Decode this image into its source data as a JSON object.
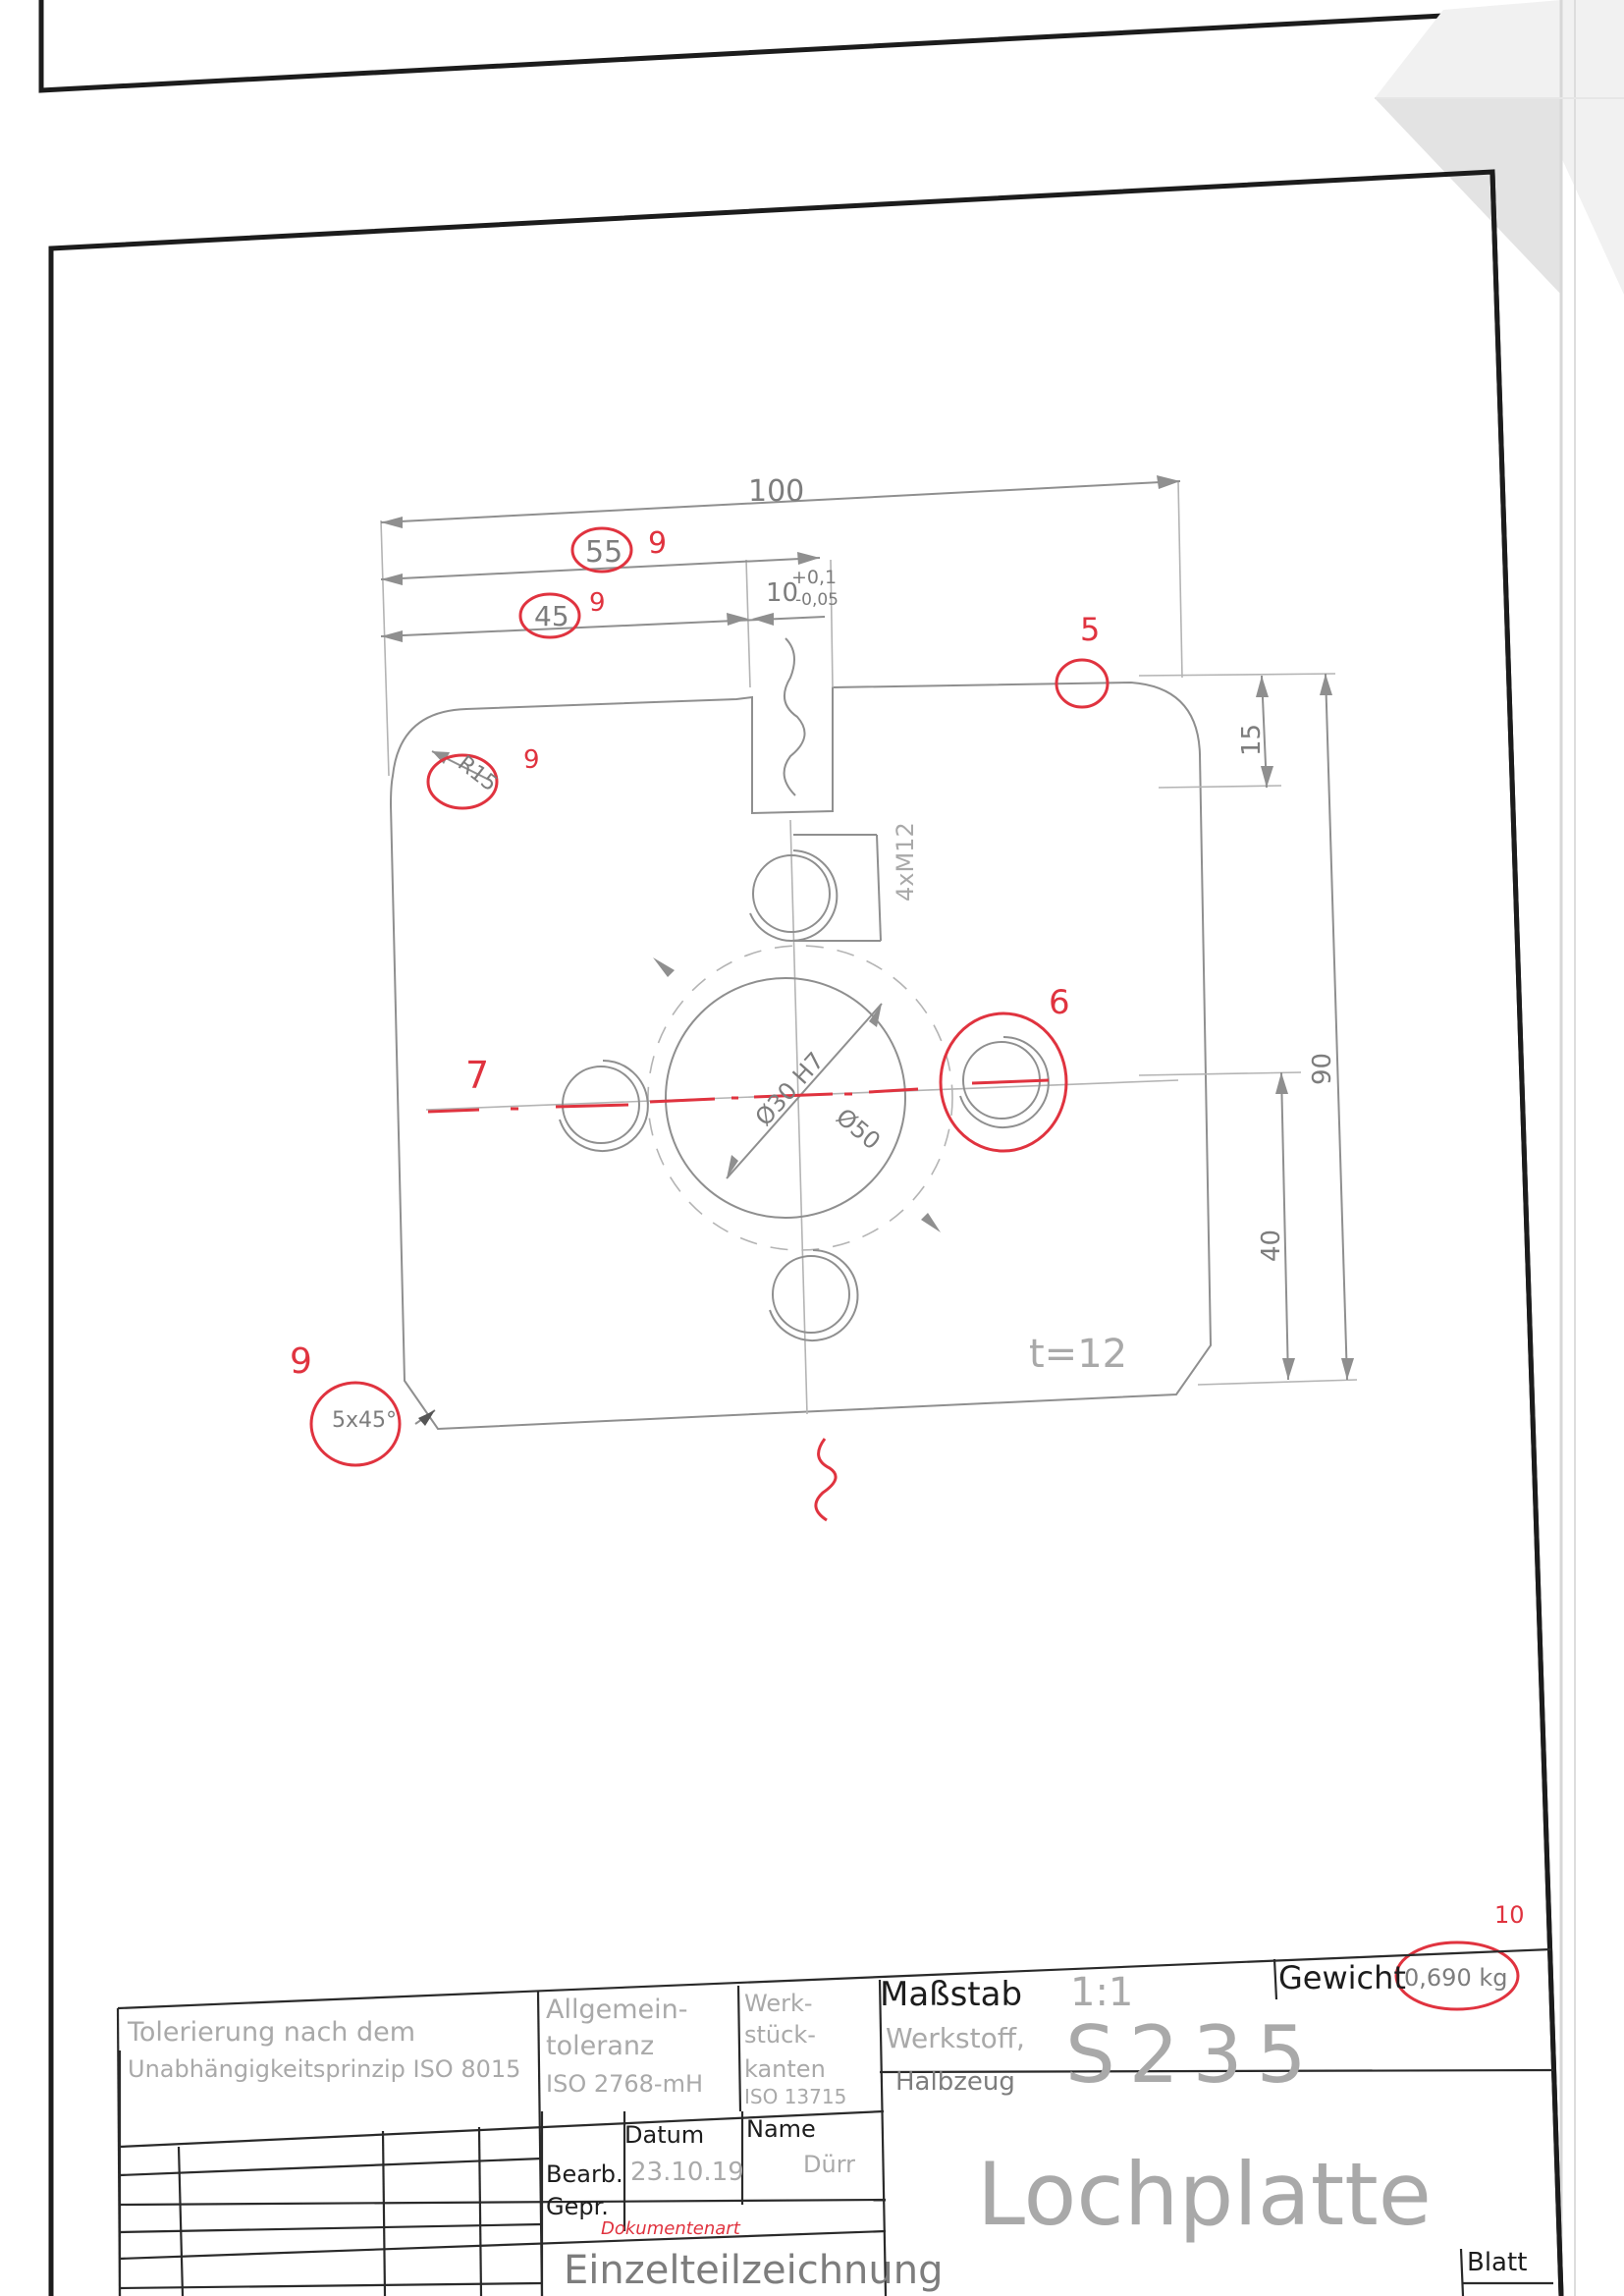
{
  "drawing": {
    "part_name": "Lochplatte",
    "thickness": "t=12",
    "dimensions": {
      "width": "100",
      "dim_55": "55",
      "dim_45": "45",
      "slot_width": "10",
      "slot_tol_upper": "+0,1",
      "slot_tol_lower": "-0,05",
      "height": "90",
      "slot_depth": "15",
      "hole_offset": "40",
      "radius": "R15",
      "chamfer": "5x45°",
      "bore": "Ø30 H7",
      "pitch_circle": "Ø50",
      "thread": "4xM12"
    },
    "markings": {
      "m9a": "9",
      "m9b": "9",
      "m9c": "9",
      "m9d": "9",
      "m5": "5",
      "m6": "6",
      "m7": "7",
      "m10": "10"
    }
  },
  "title_block": {
    "tolerancing_line1": "Tolerierung nach dem",
    "tolerancing_line2": "Unabhängigkeitsprinzip ISO 8015",
    "general_tol_line1": "Allgemein-",
    "general_tol_line2": "toleranz",
    "general_tol_line3": "ISO 2768-mH",
    "edges_line1": "Werk-",
    "edges_line2": "stück-",
    "edges_line3": "kanten",
    "edges_line4": "ISO 13715",
    "scale_label": "Maßstab",
    "scale_value": "1:1",
    "weight_label": "Gewicht",
    "weight_value": "0,690 kg",
    "material_label_1": "Werkstoff,",
    "material_label_2": "Halbzeug",
    "material_value": "S235",
    "date_header": "Datum",
    "name_header": "Name",
    "row_bearb": "Bearb.",
    "row_gepr": "Gepr.",
    "bearb_date": "23.10.19",
    "bearb_name": "Dürr",
    "doc_type_label": "Dokumentenart",
    "doc_type_value": "Einzelteilzeichnung",
    "sheet_label": "Blatt"
  }
}
